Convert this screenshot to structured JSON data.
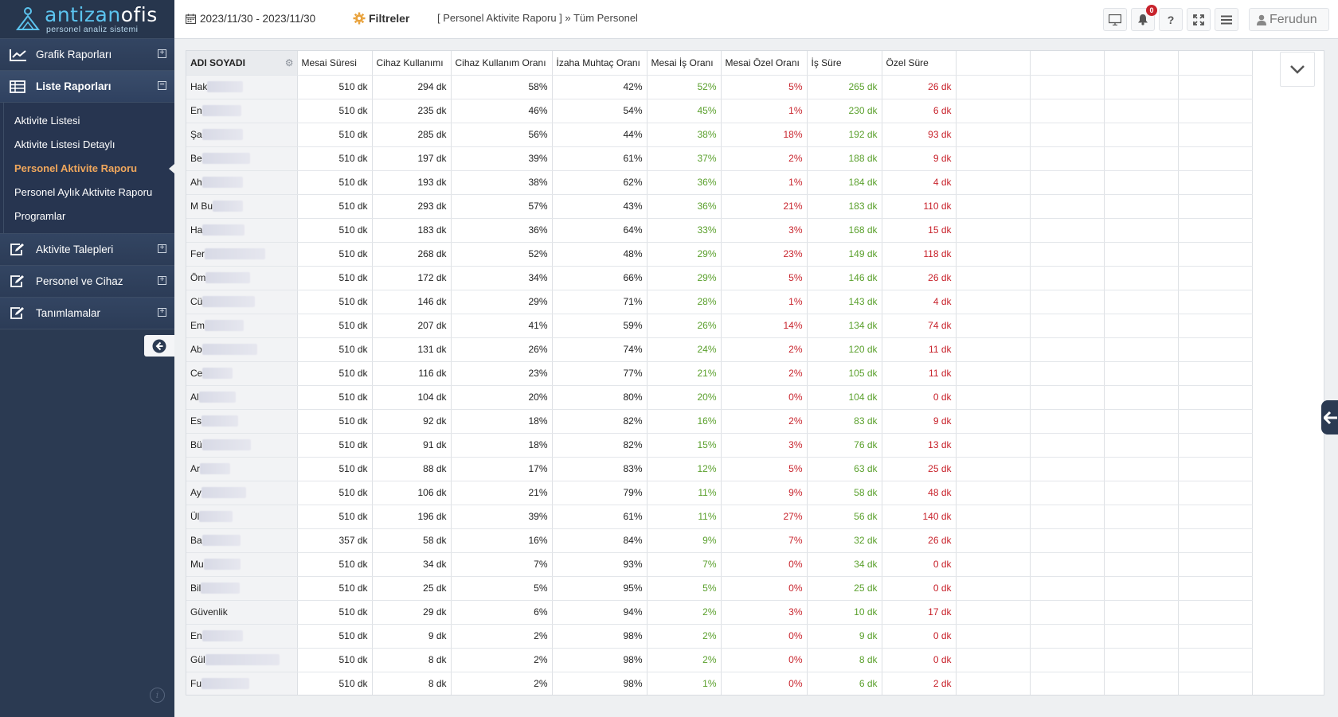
{
  "app": {
    "brand_a": "antizan",
    "brand_b": "ofis",
    "tagline": "personel analiz sistemi"
  },
  "sidebar": {
    "groups": [
      {
        "label": "Grafik Raporları",
        "icon": "line-chart-icon",
        "toggle": "⊞"
      },
      {
        "label": "Liste Raporları",
        "icon": "table-icon",
        "toggle": "⊟"
      },
      {
        "label": "Aktivite Talepleri",
        "icon": "edit-icon",
        "toggle": "⊞"
      },
      {
        "label": "Personel ve Cihaz",
        "icon": "edit-icon",
        "toggle": "⊞"
      },
      {
        "label": "Tanımlamalar",
        "icon": "edit-icon",
        "toggle": "⊞"
      }
    ],
    "sub_items": [
      "Aktivite Listesi",
      "Aktivite Listesi Detaylı",
      "Personel Aktivite Raporu",
      "Personel Aylık Aktivite Raporu",
      "Programlar"
    ],
    "info_glyph": "i"
  },
  "header": {
    "date_range": "2023/11/30 - 2023/11/30",
    "filters_label": "Filtreler",
    "breadcrumb": "[ Personel Aktivite Raporu ] » Tüm Personel",
    "notifications_count": "0",
    "help_label": "?",
    "user_name": "Ferudun"
  },
  "colors": {
    "sidebar_bg": "#2b3a52",
    "accent_blue": "#5cc4ef",
    "active_orange": "#f0a75c",
    "positive_green": "#5aa02c",
    "negative_red": "#c8232c"
  },
  "table": {
    "columns": [
      "ADI SOYADI",
      "Mesai Süresi",
      "Cihaz Kullanımı",
      "Cihaz Kullanım Oranı",
      "İzaha Muhtaç Oranı",
      "Mesai İş Oranı",
      "Mesai Özel Oranı",
      "İş Süre",
      "Özel Süre"
    ],
    "rows": [
      {
        "name": "Hak",
        "mesai": "510 dk",
        "cihaz": "294 dk",
        "cihaz_oran": "58%",
        "izah": "42%",
        "is_oran": "52%",
        "ozel_oran": "5%",
        "is_sure": "265 dk",
        "ozel_sure": "26 dk"
      },
      {
        "name": "En",
        "mesai": "510 dk",
        "cihaz": "235 dk",
        "cihaz_oran": "46%",
        "izah": "54%",
        "is_oran": "45%",
        "ozel_oran": "1%",
        "is_sure": "230 dk",
        "ozel_sure": "6 dk"
      },
      {
        "name": "Şa",
        "mesai": "510 dk",
        "cihaz": "285 dk",
        "cihaz_oran": "56%",
        "izah": "44%",
        "is_oran": "38%",
        "ozel_oran": "18%",
        "is_sure": "192 dk",
        "ozel_sure": "93 dk"
      },
      {
        "name": "Be",
        "mesai": "510 dk",
        "cihaz": "197 dk",
        "cihaz_oran": "39%",
        "izah": "61%",
        "is_oran": "37%",
        "ozel_oran": "2%",
        "is_sure": "188 dk",
        "ozel_sure": "9 dk"
      },
      {
        "name": "Ah",
        "mesai": "510 dk",
        "cihaz": "193 dk",
        "cihaz_oran": "38%",
        "izah": "62%",
        "is_oran": "36%",
        "ozel_oran": "1%",
        "is_sure": "184 dk",
        "ozel_sure": "4 dk"
      },
      {
        "name": "M Bu",
        "mesai": "510 dk",
        "cihaz": "293 dk",
        "cihaz_oran": "57%",
        "izah": "43%",
        "is_oran": "36%",
        "ozel_oran": "21%",
        "is_sure": "183 dk",
        "ozel_sure": "110 dk"
      },
      {
        "name": "Ha",
        "mesai": "510 dk",
        "cihaz": "183 dk",
        "cihaz_oran": "36%",
        "izah": "64%",
        "is_oran": "33%",
        "ozel_oran": "3%",
        "is_sure": "168 dk",
        "ozel_sure": "15 dk"
      },
      {
        "name": "Fer",
        "mesai": "510 dk",
        "cihaz": "268 dk",
        "cihaz_oran": "52%",
        "izah": "48%",
        "is_oran": "29%",
        "ozel_oran": "23%",
        "is_sure": "149 dk",
        "ozel_sure": "118 dk"
      },
      {
        "name": "Öm",
        "mesai": "510 dk",
        "cihaz": "172 dk",
        "cihaz_oran": "34%",
        "izah": "66%",
        "is_oran": "29%",
        "ozel_oran": "5%",
        "is_sure": "146 dk",
        "ozel_sure": "26 dk"
      },
      {
        "name": "Cü",
        "mesai": "510 dk",
        "cihaz": "146 dk",
        "cihaz_oran": "29%",
        "izah": "71%",
        "is_oran": "28%",
        "ozel_oran": "1%",
        "is_sure": "143 dk",
        "ozel_sure": "4 dk"
      },
      {
        "name": "Em",
        "mesai": "510 dk",
        "cihaz": "207 dk",
        "cihaz_oran": "41%",
        "izah": "59%",
        "is_oran": "26%",
        "ozel_oran": "14%",
        "is_sure": "134 dk",
        "ozel_sure": "74 dk"
      },
      {
        "name": "Ab",
        "mesai": "510 dk",
        "cihaz": "131 dk",
        "cihaz_oran": "26%",
        "izah": "74%",
        "is_oran": "24%",
        "ozel_oran": "2%",
        "is_sure": "120 dk",
        "ozel_sure": "11 dk"
      },
      {
        "name": "Ce",
        "mesai": "510 dk",
        "cihaz": "116 dk",
        "cihaz_oran": "23%",
        "izah": "77%",
        "is_oran": "21%",
        "ozel_oran": "2%",
        "is_sure": "105 dk",
        "ozel_sure": "11 dk"
      },
      {
        "name": "Al",
        "mesai": "510 dk",
        "cihaz": "104 dk",
        "cihaz_oran": "20%",
        "izah": "80%",
        "is_oran": "20%",
        "ozel_oran": "0%",
        "is_sure": "104 dk",
        "ozel_sure": "0 dk"
      },
      {
        "name": "Es",
        "mesai": "510 dk",
        "cihaz": "92 dk",
        "cihaz_oran": "18%",
        "izah": "82%",
        "is_oran": "16%",
        "ozel_oran": "2%",
        "is_sure": "83 dk",
        "ozel_sure": "9 dk"
      },
      {
        "name": "Bü",
        "mesai": "510 dk",
        "cihaz": "91 dk",
        "cihaz_oran": "18%",
        "izah": "82%",
        "is_oran": "15%",
        "ozel_oran": "3%",
        "is_sure": "76 dk",
        "ozel_sure": "13 dk"
      },
      {
        "name": "Ar",
        "mesai": "510 dk",
        "cihaz": "88 dk",
        "cihaz_oran": "17%",
        "izah": "83%",
        "is_oran": "12%",
        "ozel_oran": "5%",
        "is_sure": "63 dk",
        "ozel_sure": "25 dk"
      },
      {
        "name": "Ay",
        "mesai": "510 dk",
        "cihaz": "106 dk",
        "cihaz_oran": "21%",
        "izah": "79%",
        "is_oran": "11%",
        "ozel_oran": "9%",
        "is_sure": "58 dk",
        "ozel_sure": "48 dk"
      },
      {
        "name": "Ül",
        "mesai": "510 dk",
        "cihaz": "196 dk",
        "cihaz_oran": "39%",
        "izah": "61%",
        "is_oran": "11%",
        "ozel_oran": "27%",
        "is_sure": "56 dk",
        "ozel_sure": "140 dk"
      },
      {
        "name": "Ba",
        "mesai": "357 dk",
        "cihaz": "58 dk",
        "cihaz_oran": "16%",
        "izah": "84%",
        "is_oran": "9%",
        "ozel_oran": "7%",
        "is_sure": "32 dk",
        "ozel_sure": "26 dk"
      },
      {
        "name": "Mu",
        "mesai": "510 dk",
        "cihaz": "34 dk",
        "cihaz_oran": "7%",
        "izah": "93%",
        "is_oran": "7%",
        "ozel_oran": "0%",
        "is_sure": "34 dk",
        "ozel_sure": "0 dk"
      },
      {
        "name": "Bil",
        "mesai": "510 dk",
        "cihaz": "25 dk",
        "cihaz_oran": "5%",
        "izah": "95%",
        "is_oran": "5%",
        "ozel_oran": "0%",
        "is_sure": "25 dk",
        "ozel_sure": "0 dk"
      },
      {
        "name": "Güvenlik",
        "mesai": "510 dk",
        "cihaz": "29 dk",
        "cihaz_oran": "6%",
        "izah": "94%",
        "is_oran": "2%",
        "ozel_oran": "3%",
        "is_sure": "10 dk",
        "ozel_sure": "17 dk"
      },
      {
        "name": "En",
        "mesai": "510 dk",
        "cihaz": "9 dk",
        "cihaz_oran": "2%",
        "izah": "98%",
        "is_oran": "2%",
        "ozel_oran": "0%",
        "is_sure": "9 dk",
        "ozel_sure": "0 dk"
      },
      {
        "name": "Gül",
        "mesai": "510 dk",
        "cihaz": "8 dk",
        "cihaz_oran": "2%",
        "izah": "98%",
        "is_oran": "2%",
        "ozel_oran": "0%",
        "is_sure": "8 dk",
        "ozel_sure": "0 dk"
      },
      {
        "name": "Fu",
        "mesai": "510 dk",
        "cihaz": "8 dk",
        "cihaz_oran": "2%",
        "izah": "98%",
        "is_oran": "1%",
        "ozel_oran": "0%",
        "is_sure": "6 dk",
        "ozel_sure": "2 dk"
      }
    ]
  }
}
